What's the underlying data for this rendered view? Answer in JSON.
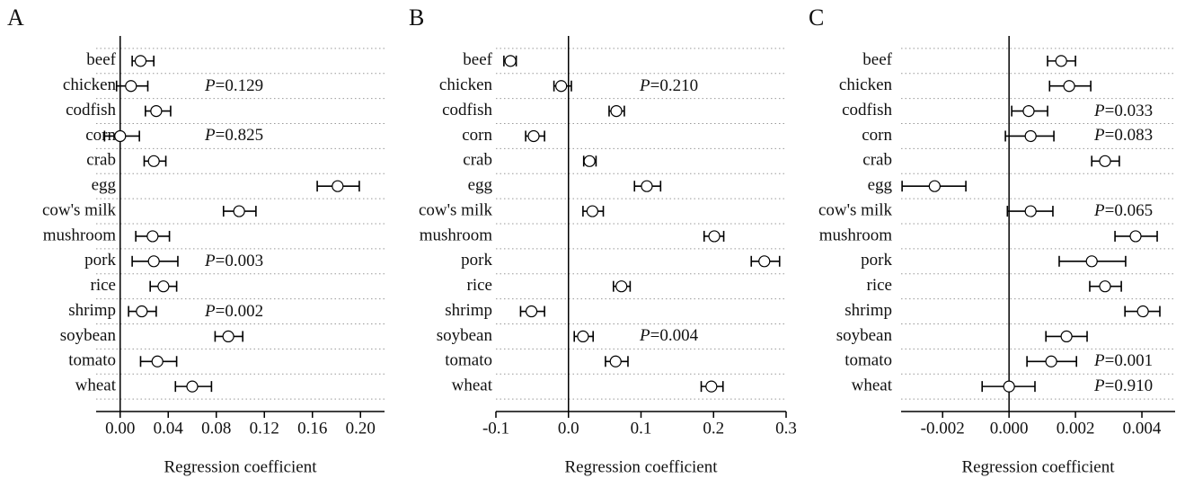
{
  "chart_data": [
    {
      "type": "forest",
      "panel": "A",
      "xlabel": "Regression coefficient",
      "categories": [
        "beef",
        "chicken",
        "codfish",
        "corn",
        "crab",
        "egg",
        "cow's milk",
        "mushroom",
        "pork",
        "rice",
        "shrimp",
        "soybean",
        "tomato",
        "wheat"
      ],
      "values": [
        0.017,
        0.009,
        0.03,
        0.0,
        0.028,
        0.181,
        0.099,
        0.027,
        0.028,
        0.036,
        0.018,
        0.09,
        0.031,
        0.06
      ],
      "lower": [
        0.01,
        -0.003,
        0.021,
        -0.013,
        0.02,
        0.164,
        0.086,
        0.013,
        0.01,
        0.025,
        0.007,
        0.079,
        0.017,
        0.046
      ],
      "upper": [
        0.028,
        0.023,
        0.042,
        0.016,
        0.038,
        0.199,
        0.113,
        0.041,
        0.048,
        0.047,
        0.03,
        0.102,
        0.047,
        0.076
      ],
      "xlim": [
        -0.02,
        0.22
      ],
      "xticks": [
        {
          "value": 0,
          "label": "0.00"
        },
        0.04,
        0.08,
        0.12,
        0.16,
        {
          "value": 0.2,
          "label": "0.20"
        }
      ],
      "annotations": [
        {
          "category": "chicken",
          "text": "P=0.129"
        },
        {
          "category": "corn",
          "text": "P=0.825"
        },
        {
          "category": "pork",
          "text": "P=0.003"
        },
        {
          "category": "shrimp",
          "text": "P=0.002"
        }
      ]
    },
    {
      "type": "forest",
      "panel": "B",
      "xlabel": "Regression coefficient",
      "categories": [
        "beef",
        "chicken",
        "codfish",
        "corn",
        "crab",
        "egg",
        "cow's milk",
        "mushroom",
        "pork",
        "rice",
        "shrimp",
        "soybean",
        "tomato",
        "wheat"
      ],
      "values": [
        -0.08,
        -0.01,
        0.066,
        -0.048,
        0.029,
        0.108,
        0.033,
        0.201,
        0.27,
        0.073,
        -0.051,
        0.02,
        0.065,
        0.197
      ],
      "lower": [
        -0.089,
        -0.02,
        0.056,
        -0.059,
        0.021,
        0.091,
        0.02,
        0.187,
        0.252,
        0.062,
        -0.066,
        0.008,
        0.051,
        0.183
      ],
      "upper": [
        -0.072,
        0.004,
        0.077,
        -0.033,
        0.038,
        0.127,
        0.048,
        0.214,
        0.291,
        0.085,
        -0.033,
        0.034,
        0.082,
        0.213
      ],
      "xlim": [
        -0.1,
        0.3
      ],
      "xticks": [
        -0.1,
        {
          "value": 0,
          "label": "0.0"
        },
        0.1,
        0.2,
        0.3
      ],
      "annotations": [
        {
          "category": "chicken",
          "text": "P=0.210"
        },
        {
          "category": "soybean",
          "text": "P=0.004"
        }
      ]
    },
    {
      "type": "forest",
      "panel": "C",
      "xlabel": "Regression coefficient",
      "categories": [
        "beef",
        "chicken",
        "codfish",
        "corn",
        "crab",
        "egg",
        "cow's milk",
        "mushroom",
        "pork",
        "rice",
        "shrimp",
        "soybean",
        "tomato",
        "wheat"
      ],
      "values": [
        0.00157,
        0.00181,
        0.00059,
        0.00065,
        0.00289,
        -0.00224,
        0.00065,
        0.00381,
        0.00249,
        0.00289,
        0.00403,
        0.00173,
        0.00127,
        0.0
      ],
      "lower": [
        0.00116,
        0.00122,
        8e-05,
        -0.00011,
        0.00249,
        -0.00322,
        -5e-05,
        0.00319,
        0.00151,
        0.00243,
        0.00349,
        0.00111,
        0.00054,
        -0.00081
      ],
      "upper": [
        0.002,
        0.00246,
        0.00116,
        0.00135,
        0.00332,
        -0.0013,
        0.00132,
        0.00446,
        0.00351,
        0.00338,
        0.00454,
        0.00235,
        0.00203,
        0.00078
      ],
      "xlim": [
        -0.00325,
        0.005
      ],
      "xticks": [
        -0.002,
        {
          "value": 0,
          "label": "0.000"
        },
        0.002,
        0.004
      ],
      "annotations": [
        {
          "category": "codfish",
          "text": "P=0.033"
        },
        {
          "category": "corn",
          "text": "P=0.083"
        },
        {
          "category": "cow's milk",
          "text": "P=0.065"
        },
        {
          "category": "tomato",
          "text": "P=0.001"
        },
        {
          "category": "wheat",
          "text": "P=0.910"
        }
      ]
    }
  ]
}
